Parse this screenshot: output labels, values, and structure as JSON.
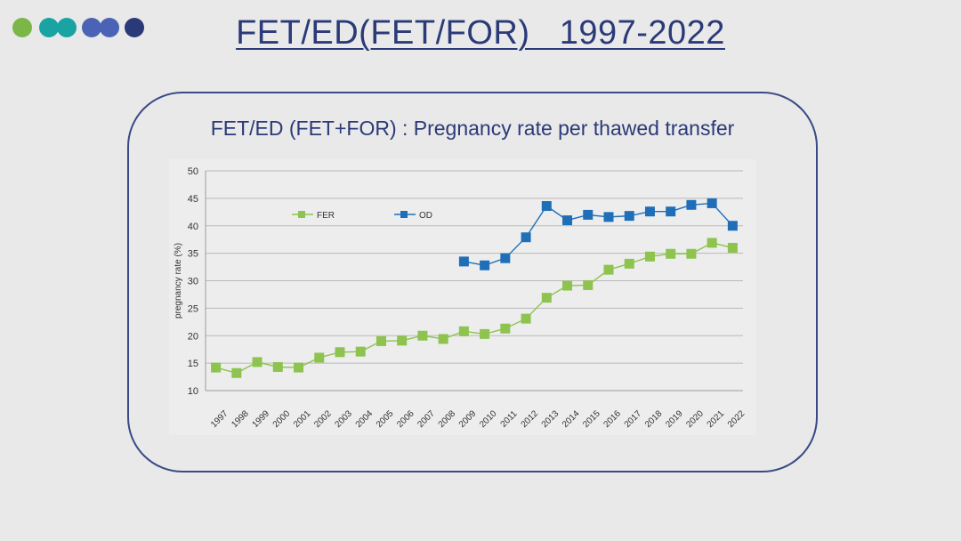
{
  "slide": {
    "title": "FET/ED(FET/FOR)   1997-2022",
    "dots": [
      {
        "name": "green-dot",
        "color": "#7ab648"
      },
      {
        "name": "teal-dot-1",
        "color": "#1aa3a3"
      },
      {
        "name": "teal-dot-2",
        "color": "#1aa3a3"
      },
      {
        "name": "blue-dot-1",
        "color": "#4a63b5"
      },
      {
        "name": "blue-dot-2",
        "color": "#4a63b5"
      },
      {
        "name": "navy-dot",
        "color": "#2a3a78"
      }
    ]
  },
  "chart_data": {
    "type": "line",
    "title": "FET/ED (FET+FOR) : Pregnancy rate per thawed transfer",
    "xlabel": "",
    "ylabel": "pregnancy rate (%)",
    "ylim": [
      10,
      50
    ],
    "yticks": [
      10,
      15,
      20,
      25,
      30,
      35,
      40,
      45,
      50
    ],
    "grid": true,
    "legend_position": "top-left",
    "categories": [
      "1997",
      "1998",
      "1999",
      "2000",
      "2001",
      "2002",
      "2003",
      "2004",
      "2005",
      "2006",
      "2007",
      "2008",
      "2009",
      "2010",
      "2011",
      "2012",
      "2013",
      "2014",
      "2015",
      "2016",
      "2017",
      "2018",
      "2019",
      "2020",
      "2021",
      "2022"
    ],
    "series": [
      {
        "name": "FER",
        "color": "#8dc34e",
        "values": [
          14.2,
          13.2,
          15.2,
          14.3,
          14.2,
          16.0,
          17.0,
          17.1,
          19.0,
          19.1,
          20.0,
          19.4,
          20.8,
          20.3,
          21.3,
          23.1,
          26.9,
          29.1,
          29.2,
          32.0,
          33.1,
          34.4,
          34.9,
          34.9,
          36.9,
          36.0
        ]
      },
      {
        "name": "OD",
        "color": "#1f6fb8",
        "values": [
          null,
          null,
          null,
          null,
          null,
          null,
          null,
          null,
          null,
          null,
          null,
          null,
          33.5,
          32.8,
          34.1,
          37.9,
          43.6,
          41.0,
          42.0,
          41.6,
          41.8,
          42.6,
          42.6,
          43.8,
          44.1,
          40.0
        ]
      }
    ]
  }
}
